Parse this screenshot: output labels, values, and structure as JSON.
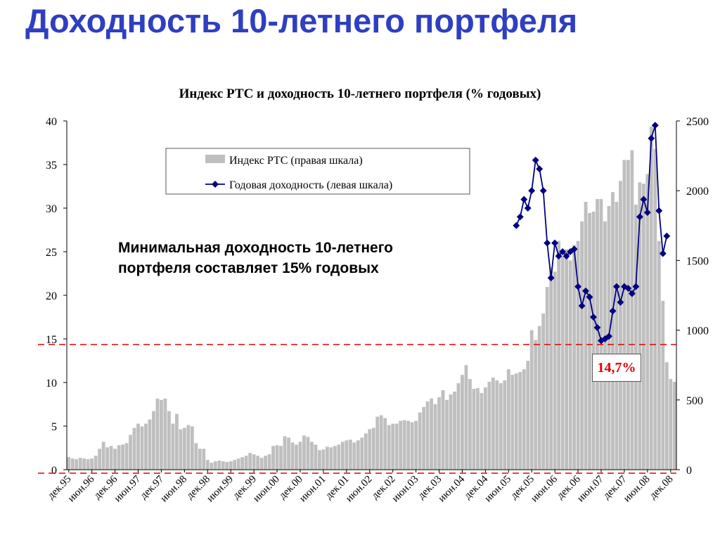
{
  "slide": {
    "title": "Доходность 10-летнего портфеля",
    "callout": [
      "Минимальная доходность 10-летнего",
      "портфеля составляет 15% годовых"
    ],
    "min_label": "14,7%"
  },
  "colors": {
    "title": "#2e3fc0",
    "bar": "#bfbfbf",
    "line": "#000080",
    "threshold": "#e00000"
  },
  "chart_data": {
    "type": "bar+line",
    "title": "Индекс РТС и доходность 10-летнего портфеля (% годовых)",
    "left_axis": {
      "ylim": [
        0,
        40
      ],
      "ticks": [
        "0",
        "5",
        "10",
        "15",
        "20",
        "25",
        "30",
        "35",
        "40"
      ]
    },
    "right_axis": {
      "ylim": [
        0,
        2500
      ],
      "ticks": [
        "0",
        "500",
        "1000",
        "1500",
        "2000",
        "2500"
      ]
    },
    "x_tick_labels": [
      "дек.95",
      "июн.96",
      "дек.96",
      "июн.97",
      "дек.97",
      "июн.98",
      "дек.98",
      "июн.99",
      "дек.99",
      "июн.00",
      "дек.00",
      "июн.01",
      "дек.01",
      "июн.02",
      "дек.02",
      "июн.03",
      "дек.03",
      "июн.04",
      "дек.04",
      "июн.05",
      "дек.05",
      "июн.06",
      "дек.06",
      "июн.07",
      "дек.07",
      "июн.08",
      "дек.08"
    ],
    "legend": [
      "Индекс РТС (правая шкала)",
      "Годовая доходность (левая шкала)"
    ],
    "legend_position": "top",
    "reference_line": {
      "value": 15,
      "axis": "left"
    },
    "annotation": "14,7%",
    "series": [
      {
        "name": "Индекс РТС (правая шкала)",
        "type": "bar",
        "axis": "right",
        "values": [
          90,
          80,
          75,
          85,
          80,
          75,
          80,
          100,
          150,
          200,
          160,
          170,
          150,
          175,
          180,
          190,
          250,
          300,
          330,
          310,
          330,
          360,
          420,
          510,
          500,
          510,
          420,
          330,
          400,
          290,
          300,
          320,
          310,
          190,
          150,
          150,
          70,
          50,
          60,
          65,
          60,
          55,
          60,
          70,
          80,
          90,
          100,
          120,
          110,
          100,
          85,
          100,
          110,
          170,
          175,
          170,
          240,
          230,
          195,
          180,
          200,
          245,
          235,
          200,
          180,
          140,
          145,
          165,
          160,
          170,
          180,
          200,
          210,
          215,
          195,
          210,
          230,
          260,
          290,
          300,
          380,
          390,
          370,
          320,
          330,
          330,
          350,
          355,
          350,
          340,
          350,
          410,
          450,
          490,
          510,
          470,
          520,
          570,
          500,
          540,
          560,
          620,
          680,
          750,
          650,
          580,
          585,
          550,
          590,
          630,
          660,
          640,
          620,
          640,
          720,
          680,
          690,
          700,
          720,
          780,
          1000,
          930,
          1030,
          1120,
          1310,
          1450,
          1420,
          1640,
          1530,
          1580,
          1500,
          1610,
          1640,
          1780,
          1920,
          1840,
          1850,
          1940,
          1940,
          1780,
          1890,
          1990,
          1920,
          2070,
          2220,
          2220,
          2290,
          1900,
          2060,
          2050,
          2120,
          2460,
          2300,
          1640,
          1210,
          770,
          650,
          630
        ]
      },
      {
        "name": "Годовая доходность (левая шкала)",
        "type": "line",
        "axis": "left",
        "start_index": 116,
        "values": [
          28,
          29,
          31,
          30,
          32,
          35.5,
          34.5,
          32,
          26,
          22,
          26,
          24.5,
          25,
          24.5,
          25,
          25.3,
          21,
          18.8,
          20.5,
          19.8,
          17.5,
          16.3,
          14.8,
          15,
          15.3,
          18.2,
          21,
          19.2,
          21,
          20.8,
          20.2,
          21,
          29,
          31,
          29.5,
          38,
          39.5,
          29.7,
          24.8,
          26.8
        ]
      }
    ]
  }
}
